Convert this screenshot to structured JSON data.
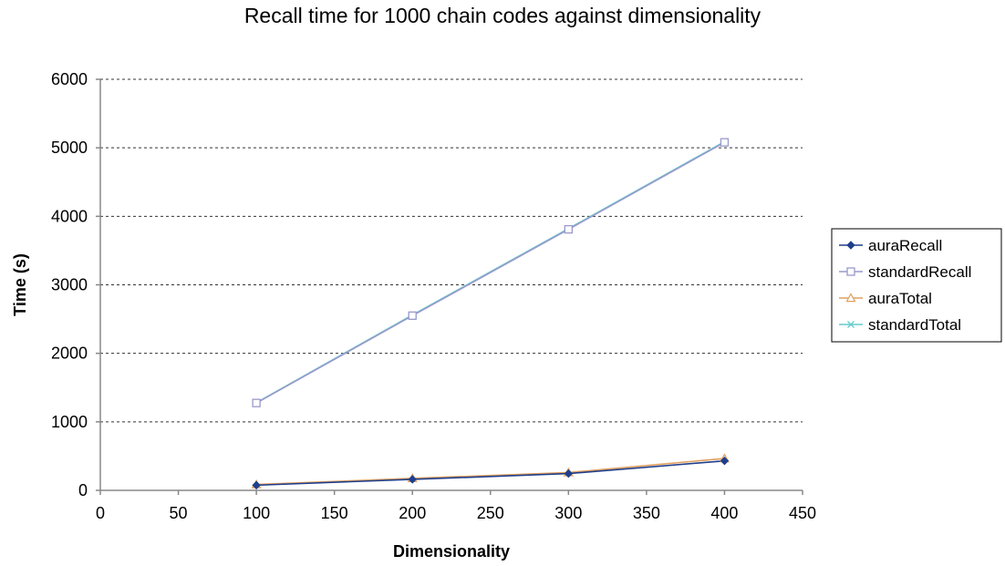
{
  "chart_data": {
    "type": "line",
    "title": "Recall time for 1000 chain codes against dimensionality",
    "xlabel": "Dimensionality",
    "ylabel": "Time (s)",
    "xlim": [
      0,
      450
    ],
    "ylim": [
      0,
      6000
    ],
    "xticks": [
      0,
      50,
      100,
      150,
      200,
      250,
      300,
      350,
      400,
      450
    ],
    "yticks": [
      0,
      1000,
      2000,
      3000,
      4000,
      5000,
      6000
    ],
    "grid": "horizontal dotted",
    "legend": "right",
    "series": [
      {
        "name": "auraRecall",
        "x": [
          100,
          200,
          300,
          400
        ],
        "values": [
          75,
          160,
          245,
          430
        ],
        "color": "#1f3f8c",
        "marker": "diamond"
      },
      {
        "name": "standardRecall",
        "x": [
          100,
          200,
          300,
          400
        ],
        "values": [
          1275,
          2550,
          3810,
          5080
        ],
        "color": "#9999cc",
        "marker": "square"
      },
      {
        "name": "auraTotal",
        "x": [
          100,
          200,
          300,
          400
        ],
        "values": [
          85,
          175,
          260,
          465
        ],
        "color": "#e0a060",
        "marker": "triangle"
      },
      {
        "name": "standardTotal",
        "x": [
          100,
          200,
          300,
          400
        ],
        "values": [
          1280,
          2560,
          3820,
          5090
        ],
        "color": "#66cccc",
        "marker": "x"
      }
    ]
  }
}
